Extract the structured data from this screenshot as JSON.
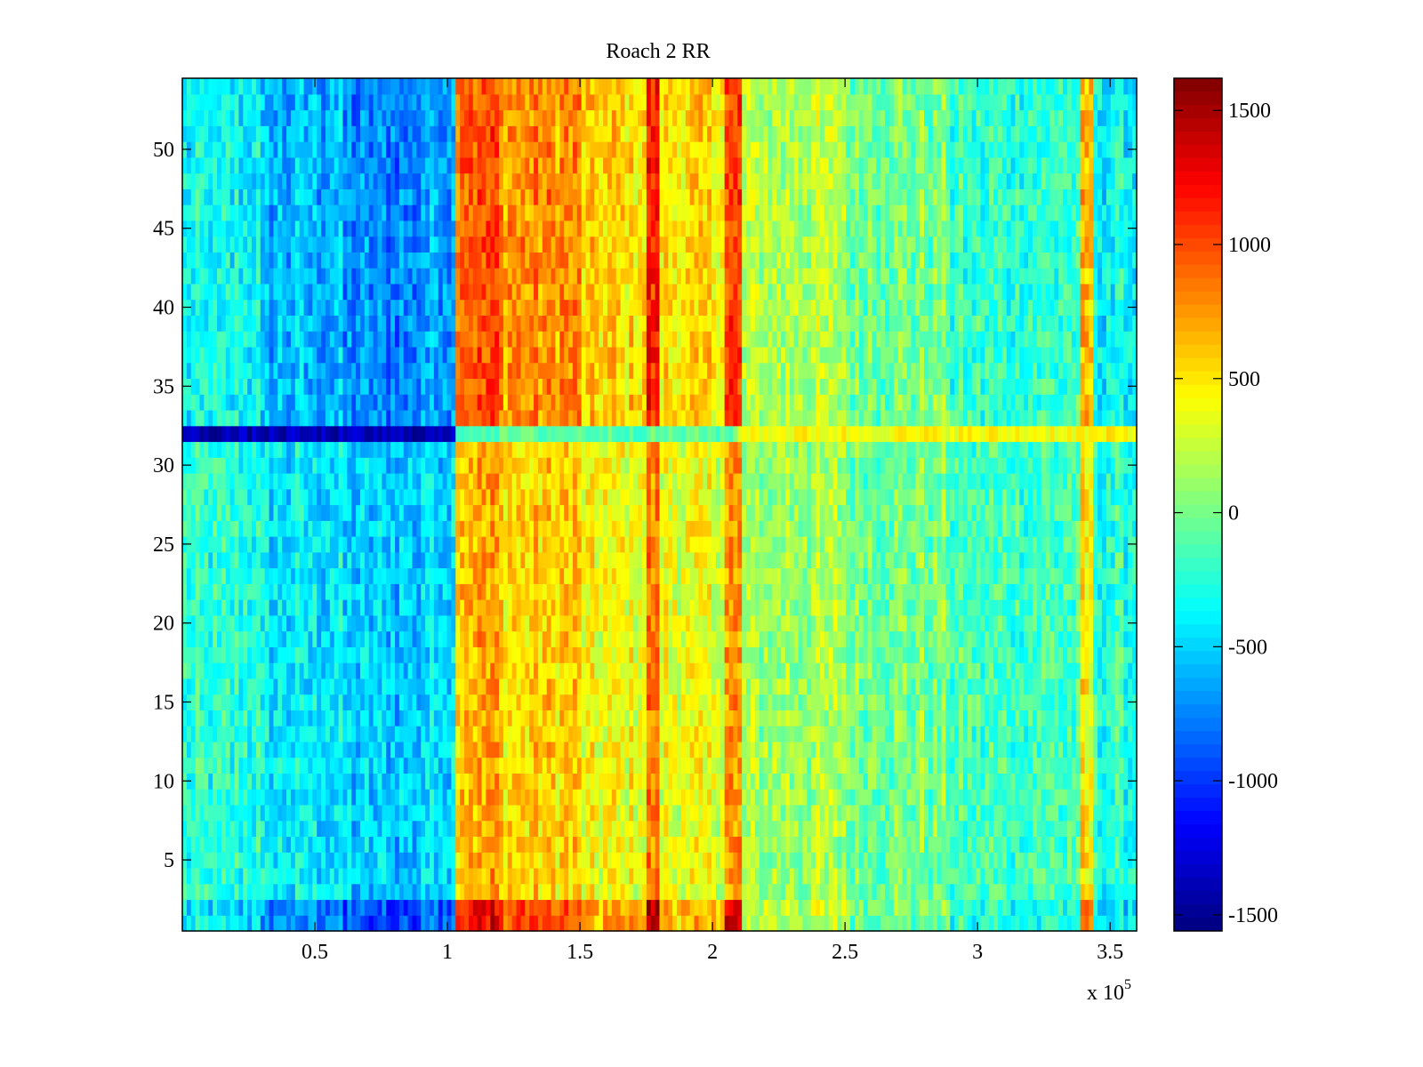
{
  "chart_data": {
    "type": "heatmap",
    "title": "Roach 2 RR",
    "xlabel": "",
    "ylabel": "",
    "x_multiplier_label": "x 10",
    "x_multiplier_exp": "5",
    "xlim": [
      0,
      360000
    ],
    "ylim": [
      0.5,
      54.5
    ],
    "rows": 54,
    "clim": [
      -1560,
      1620
    ],
    "colormap": "jet",
    "x_ticks": [
      {
        "v": 50000,
        "label": "0.5"
      },
      {
        "v": 100000,
        "label": "1"
      },
      {
        "v": 150000,
        "label": "1.5"
      },
      {
        "v": 200000,
        "label": "2"
      },
      {
        "v": 250000,
        "label": "2.5"
      },
      {
        "v": 300000,
        "label": "3"
      },
      {
        "v": 350000,
        "label": "3.5"
      }
    ],
    "y_ticks": [
      {
        "v": 5,
        "label": "5"
      },
      {
        "v": 10,
        "label": "10"
      },
      {
        "v": 15,
        "label": "15"
      },
      {
        "v": 20,
        "label": "20"
      },
      {
        "v": 25,
        "label": "25"
      },
      {
        "v": 30,
        "label": "30"
      },
      {
        "v": 35,
        "label": "35"
      },
      {
        "v": 40,
        "label": "40"
      },
      {
        "v": 45,
        "label": "45"
      },
      {
        "v": 50,
        "label": "50"
      }
    ],
    "colorbar_ticks": [
      {
        "v": 1500,
        "label": "1500"
      },
      {
        "v": 1000,
        "label": "1000"
      },
      {
        "v": 500,
        "label": "500"
      },
      {
        "v": 0,
        "label": "0"
      },
      {
        "v": -500,
        "label": "-500"
      },
      {
        "v": -1000,
        "label": "-1000"
      },
      {
        "v": -1500,
        "label": "-1500"
      }
    ],
    "column_profile": [
      {
        "x0": 0,
        "x1": 30000,
        "mean": -300
      },
      {
        "x0": 30000,
        "x1": 60000,
        "mean": -500
      },
      {
        "x0": 60000,
        "x1": 90000,
        "mean": -620
      },
      {
        "x0": 90000,
        "x1": 103000,
        "mean": -520
      },
      {
        "x0": 103000,
        "x1": 120000,
        "mean": 820
      },
      {
        "x0": 120000,
        "x1": 150000,
        "mean": 650
      },
      {
        "x0": 150000,
        "x1": 175000,
        "mean": 450
      },
      {
        "x0": 175000,
        "x1": 180000,
        "mean": 950
      },
      {
        "x0": 180000,
        "x1": 205000,
        "mean": 420
      },
      {
        "x0": 205000,
        "x1": 211000,
        "mean": 850
      },
      {
        "x0": 211000,
        "x1": 250000,
        "mean": 150
      },
      {
        "x0": 250000,
        "x1": 290000,
        "mean": 0
      },
      {
        "x0": 290000,
        "x1": 338000,
        "mean": -180
      },
      {
        "x0": 338000,
        "x1": 343000,
        "mean": 500
      },
      {
        "x0": 343000,
        "x1": 360000,
        "mean": -300
      }
    ],
    "row_contrast": [
      {
        "r0": 1,
        "r1": 2,
        "scale": 1.5
      },
      {
        "r0": 3,
        "r1": 31,
        "scale": 0.85
      },
      {
        "r0": 33,
        "r1": 54,
        "scale": 1.2
      }
    ],
    "row_overrides": [
      {
        "row": 32,
        "segments": [
          {
            "x0": 0,
            "x1": 103000,
            "mean": -1400
          },
          {
            "x0": 103000,
            "x1": 210000,
            "mean": -80
          },
          {
            "x0": 210000,
            "x1": 360000,
            "mean": 420
          }
        ]
      }
    ],
    "noise_amplitude": 380
  }
}
